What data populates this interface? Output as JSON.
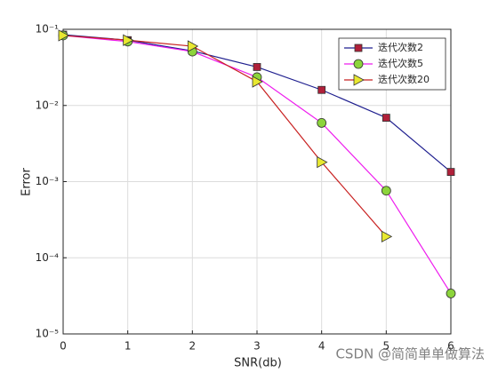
{
  "chart_data": {
    "type": "line",
    "xlabel": "SNR(db)",
    "ylabel": "Error",
    "x": [
      0,
      1,
      2,
      3,
      4,
      5,
      6
    ],
    "series": [
      {
        "name": "迭代次数2",
        "color": "#1f1f8f",
        "marker": "square",
        "marker_color": "#b0203a",
        "values": [
          0.085,
          0.072,
          0.052,
          0.032,
          0.016,
          0.0069,
          0.00134
        ]
      },
      {
        "name": "迭代次数5",
        "color": "#ee1cee",
        "marker": "circle",
        "marker_color": "#8cd43c",
        "values": [
          0.083,
          0.069,
          0.051,
          0.0235,
          0.0059,
          0.00076,
          3.4e-05
        ]
      },
      {
        "name": "迭代次数20",
        "color": "#c82020",
        "marker": "triangle",
        "marker_color": "#e8e830",
        "values": [
          0.083,
          0.072,
          0.06,
          0.0205,
          0.0018,
          0.00019,
          null
        ]
      }
    ],
    "xlim": [
      0,
      6
    ],
    "xticks": [
      0,
      1,
      2,
      3,
      4,
      5,
      6
    ],
    "ylim": [
      1e-05,
      0.1
    ],
    "log_y": true,
    "yticks": [
      {
        "value": 1e-05,
        "label": "10⁻⁵"
      },
      {
        "value": 0.0001,
        "label": "10⁻⁴"
      },
      {
        "value": 0.001,
        "label": "10⁻³"
      },
      {
        "value": 0.01,
        "label": "10⁻²"
      },
      {
        "value": 0.1,
        "label": "10⁻¹"
      }
    ],
    "grid": true,
    "legend": "top-right",
    "watermark": "CSDN @简简单单做算法"
  }
}
